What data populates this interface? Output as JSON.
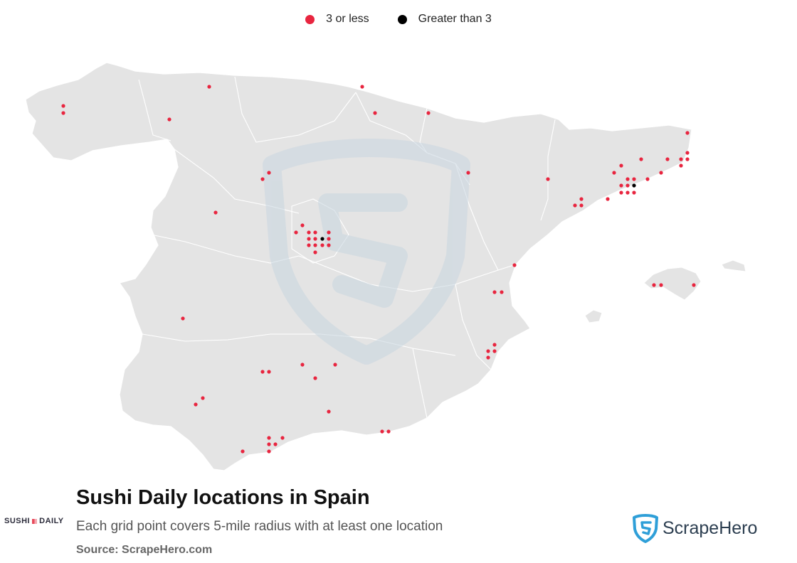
{
  "legend": {
    "items": [
      {
        "label": "3 or less",
        "color": "#e8253f"
      },
      {
        "label": "Greater than 3",
        "color": "#000000"
      }
    ]
  },
  "title": "Sushi Daily locations in Spain",
  "subtitle": "Each grid point covers 5-mile radius with at least one location",
  "source": "Source: ScrapeHero.com",
  "brand_logo": {
    "left": "SUSHI",
    "right": "DAILY"
  },
  "scrapehero_logo": {
    "text": "ScrapeHero"
  },
  "colors": {
    "land": "#e4e4e4",
    "border": "#ffffff",
    "low": "#e8253f",
    "high": "#000000",
    "watermark": "#c8d6e0"
  }
}
